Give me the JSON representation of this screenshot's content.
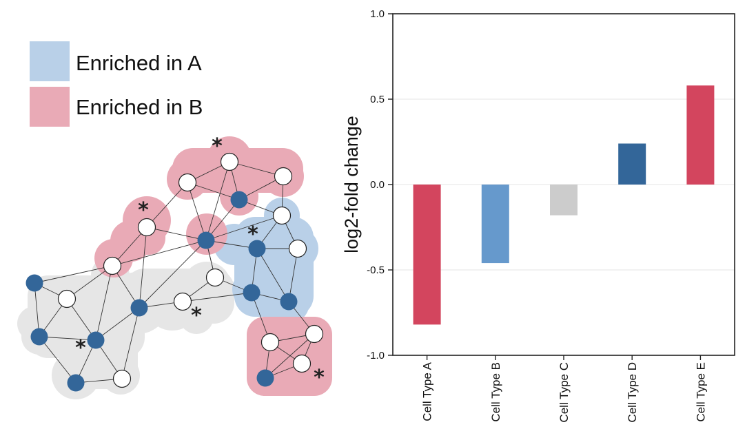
{
  "legend": [
    {
      "label": "Enriched in A",
      "color": "#b9d0e8"
    },
    {
      "label": "Enriched in B",
      "color": "#e9aab6"
    }
  ],
  "network": {
    "colors": {
      "region_neutral": "#e6e6e6",
      "region_a": "#b9d0e8",
      "region_b": "#e9aab6",
      "node_filled": "#336699",
      "node_empty": "#ffffff",
      "edge": "#333333"
    },
    "marker": "*"
  },
  "chart_data": {
    "type": "bar",
    "categories": [
      "Cell Type A",
      "Cell Type B",
      "Cell Type C",
      "Cell Type D",
      "Cell Type E"
    ],
    "values": [
      -0.82,
      -0.46,
      -0.18,
      0.24,
      0.58
    ],
    "colors": [
      "#d3455e",
      "#6699cc",
      "#cccccc",
      "#336699",
      "#d3455e"
    ],
    "ylabel": "log2-fold change",
    "ylim": [
      -1.0,
      1.0
    ],
    "yticks": [
      -1.0,
      -0.5,
      0.0,
      0.5,
      1.0
    ],
    "ytick_labels": [
      "-1.0",
      "-0.5",
      "0.0",
      "0.5",
      "1.0"
    ],
    "grid": true
  }
}
